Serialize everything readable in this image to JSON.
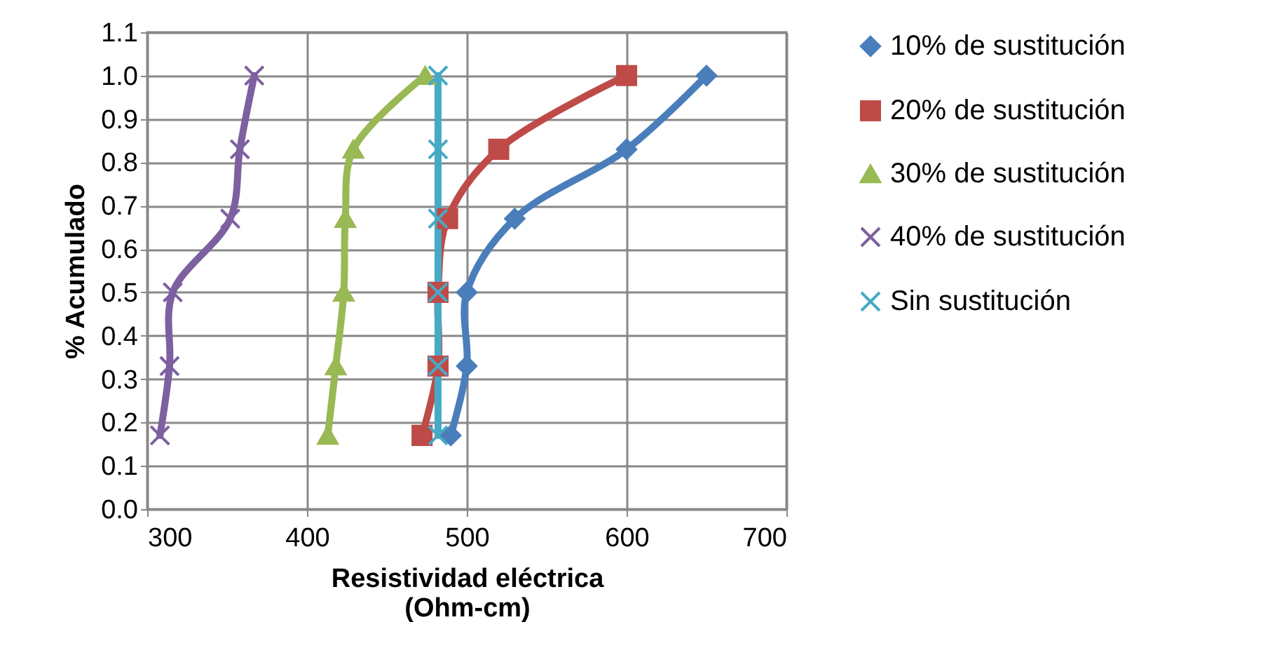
{
  "chart_data": {
    "type": "line",
    "xlabel": "Resistividad eléctrica (Ohm-cm)",
    "ylabel": "% Acumulado",
    "xlim": [
      300,
      700
    ],
    "xticks": [
      300,
      400,
      500,
      600,
      700
    ],
    "ylim": [
      0,
      1.1
    ],
    "yticks": [
      {
        "value": 0,
        "label": "0.0"
      },
      0.1,
      0.2,
      0.3,
      0.4,
      0.5,
      0.6,
      0.7,
      0.8,
      0.9,
      {
        "value": 1,
        "label": "1.0"
      },
      1.1
    ],
    "grid": true,
    "legend": "right",
    "line_style": "solid",
    "series": [
      {
        "name": "10% de sustitución",
        "color": "#4a7ebb",
        "marker": "diamond",
        "x": [
          490,
          500,
          500,
          530,
          600,
          650
        ],
        "values": [
          0.17,
          0.33,
          0.5,
          0.67,
          0.83,
          1.0
        ]
      },
      {
        "name": "20% de sustitución",
        "color": "#be4b48",
        "marker": "square",
        "x": [
          472,
          482,
          482,
          488,
          520,
          600
        ],
        "values": [
          0.17,
          0.33,
          0.5,
          0.67,
          0.83,
          1.0
        ]
      },
      {
        "name": "30% de sustitución",
        "color": "#98b954",
        "marker": "triangle",
        "x": [
          413,
          418,
          423,
          424,
          429,
          474
        ],
        "values": [
          0.17,
          0.33,
          0.5,
          0.67,
          0.83,
          1.0
        ]
      },
      {
        "name": "40% de sustitución",
        "color": "#7d60a0",
        "marker": "cross",
        "x": [
          308,
          314,
          316,
          352,
          358,
          367
        ],
        "values": [
          0.17,
          0.33,
          0.5,
          0.67,
          0.83,
          1.0
        ]
      },
      {
        "name": "Sin sustitución",
        "color": "#46aac5",
        "marker": "cross",
        "x": [
          482,
          482,
          482,
          482,
          482,
          482
        ],
        "values": [
          0.17,
          0.33,
          0.5,
          0.67,
          0.83,
          1.0
        ]
      }
    ]
  }
}
